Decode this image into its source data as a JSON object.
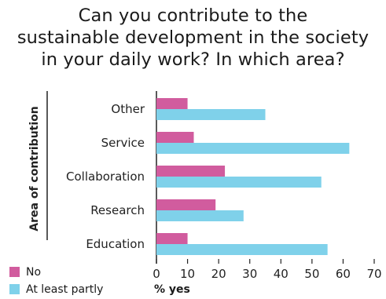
{
  "title": "Can you contribute to the\nsustainable development in the society\nin your daily work? In which area?",
  "legend": {
    "no": "No",
    "yes": "At least partly"
  },
  "colors": {
    "no": "#d15c9e",
    "yes": "#7fd1ea",
    "axis": "#222222"
  },
  "chart_data": {
    "type": "bar",
    "orientation": "horizontal",
    "title": "Can you contribute to the sustainable development in the society in your daily work? In which area?",
    "ylabel": "Area of contribution",
    "xlabel": "% yes",
    "categories": [
      "Other",
      "Service",
      "Collaboration",
      "Research",
      "Education"
    ],
    "series": [
      {
        "name": "No",
        "values": [
          10,
          12,
          22,
          19,
          10
        ]
      },
      {
        "name": "At least partly",
        "values": [
          35,
          62,
          53,
          28,
          55
        ]
      }
    ],
    "xlim": [
      0,
      70
    ],
    "xticks": [
      0,
      10,
      20,
      30,
      40,
      50,
      60,
      70
    ],
    "grid": false,
    "legend_position": "bottom-left"
  }
}
